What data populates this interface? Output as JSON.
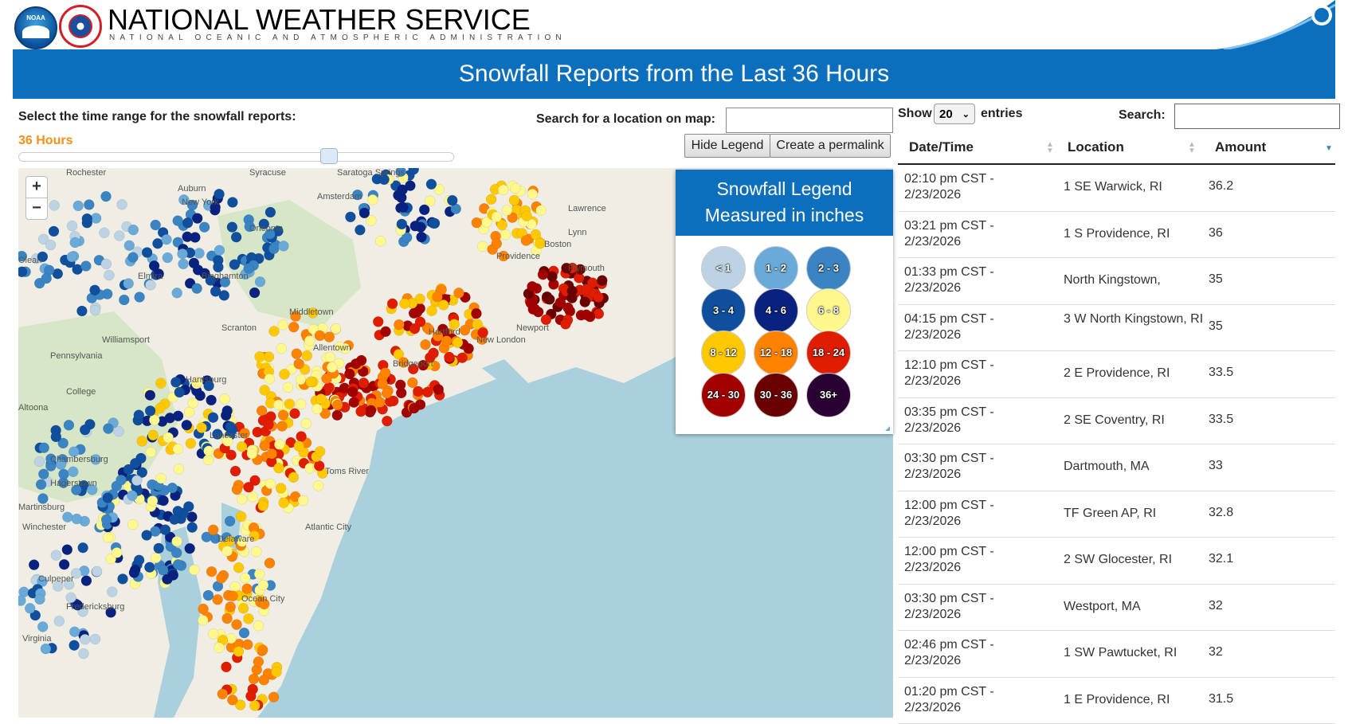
{
  "header": {
    "agency_title": "NATIONAL WEATHER SERVICE",
    "agency_subtitle": "NATIONAL OCEANIC AND ATMOSPHERIC ADMINISTRATION",
    "noaa_logo_text": "NOAA",
    "page_title": "Snowfall Reports from the Last 36 Hours"
  },
  "controls": {
    "range_label": "Select the time range for the snowfall reports:",
    "range_value": "36 Hours",
    "map_search_label": "Search for a location on map:",
    "map_search_value": "",
    "hide_legend_label": "Hide Legend",
    "permalink_label": "Create a permalink"
  },
  "map": {
    "zoom_in": "+",
    "zoom_out": "−",
    "labels": [
      "Rochester",
      "Saratoga Springs",
      "Auburn",
      "New York",
      "Amsterdam",
      "Oneonta",
      "Elmira",
      "Binghamton",
      "Scranton",
      "Middletown",
      "Williamsport",
      "Pennsylvania",
      "College",
      "Altoona",
      "Chambersburg",
      "Hagerstown",
      "Martinsburg",
      "Winchester",
      "Culpeper",
      "Fredericksburg",
      "Virginia",
      "Bridgeport",
      "New London",
      "Newport",
      "Providence",
      "Boston",
      "Lynn",
      "Plymouth",
      "Toms River",
      "Atlantic City",
      "Delaware",
      "Ocean City",
      "Harrisburg",
      "Allentown",
      "Lancaster",
      "Hartford",
      "Lawrence",
      "Olean",
      "Syracuse"
    ],
    "colors": {
      "lt1": "#bcd3e4",
      "s1_2": "#6aaad8",
      "s2_3": "#3a84c4",
      "s3_4": "#0f4f9e",
      "s4_6": "#09227f",
      "s6_8": "#fff88f",
      "s8_12": "#ffc800",
      "s12_18": "#ff8200",
      "s18_24": "#e01d00",
      "s24_30": "#a30000",
      "s30_36": "#6b0000",
      "s36p": "#2a0033"
    }
  },
  "legend": {
    "title_line1": "Snowfall Legend",
    "title_line2": "Measured in inches",
    "items": [
      {
        "label": "< 1",
        "color": "#bcd3e4"
      },
      {
        "label": "1 - 2",
        "color": "#6aaad8"
      },
      {
        "label": "2 - 3",
        "color": "#3a84c4"
      },
      {
        "label": "3 - 4",
        "color": "#0f4f9e"
      },
      {
        "label": "4 - 6",
        "color": "#09227f"
      },
      {
        "label": "6 - 8",
        "color": "#fff88f"
      },
      {
        "label": "8 - 12",
        "color": "#ffc800"
      },
      {
        "label": "12 - 18",
        "color": "#ff8200"
      },
      {
        "label": "18 - 24",
        "color": "#e01d00"
      },
      {
        "label": "24 - 30",
        "color": "#a30000"
      },
      {
        "label": "30 - 36",
        "color": "#6b0000"
      },
      {
        "label": "36+",
        "color": "#2a0033"
      }
    ]
  },
  "table": {
    "show_label": "Show",
    "entries_value": "20",
    "entries_label": "entries",
    "search_label": "Search:",
    "search_value": "",
    "columns": [
      "Date/Time",
      "Location",
      "Amount"
    ],
    "rows": [
      {
        "datetime": "02:10 pm CST - 2/23/2026",
        "location": "1 SE Warwick, RI",
        "amount": "36.2"
      },
      {
        "datetime": "03:21 pm CST - 2/23/2026",
        "location": "1 S Providence, RI",
        "amount": "36"
      },
      {
        "datetime": "01:33 pm CST - 2/23/2026",
        "location": "North Kingstown,",
        "amount": "35"
      },
      {
        "datetime": "04:15 pm CST - 2/23/2026",
        "location": "3 W North Kingstown, RI",
        "amount": "35"
      },
      {
        "datetime": "12:10 pm CST - 2/23/2026",
        "location": "2 E Providence, RI",
        "amount": "33.5"
      },
      {
        "datetime": "03:35 pm CST - 2/23/2026",
        "location": "2 SE Coventry, RI",
        "amount": "33.5"
      },
      {
        "datetime": "03:30 pm CST - 2/23/2026",
        "location": "Dartmouth, MA",
        "amount": "33"
      },
      {
        "datetime": "12:00 pm CST - 2/23/2026",
        "location": "TF Green AP, RI",
        "amount": "32.8"
      },
      {
        "datetime": "12:00 pm CST - 2/23/2026",
        "location": "2 SW Glocester, RI",
        "amount": "32.1"
      },
      {
        "datetime": "03:30 pm CST - 2/23/2026",
        "location": "Westport, MA",
        "amount": "32"
      },
      {
        "datetime": "02:46 pm CST - 2/23/2026",
        "location": "1 SW Pawtucket, RI",
        "amount": "32"
      },
      {
        "datetime": "01:20 pm CST - 2/23/2026",
        "location": "1 E Providence, RI",
        "amount": "31.5"
      }
    ]
  }
}
